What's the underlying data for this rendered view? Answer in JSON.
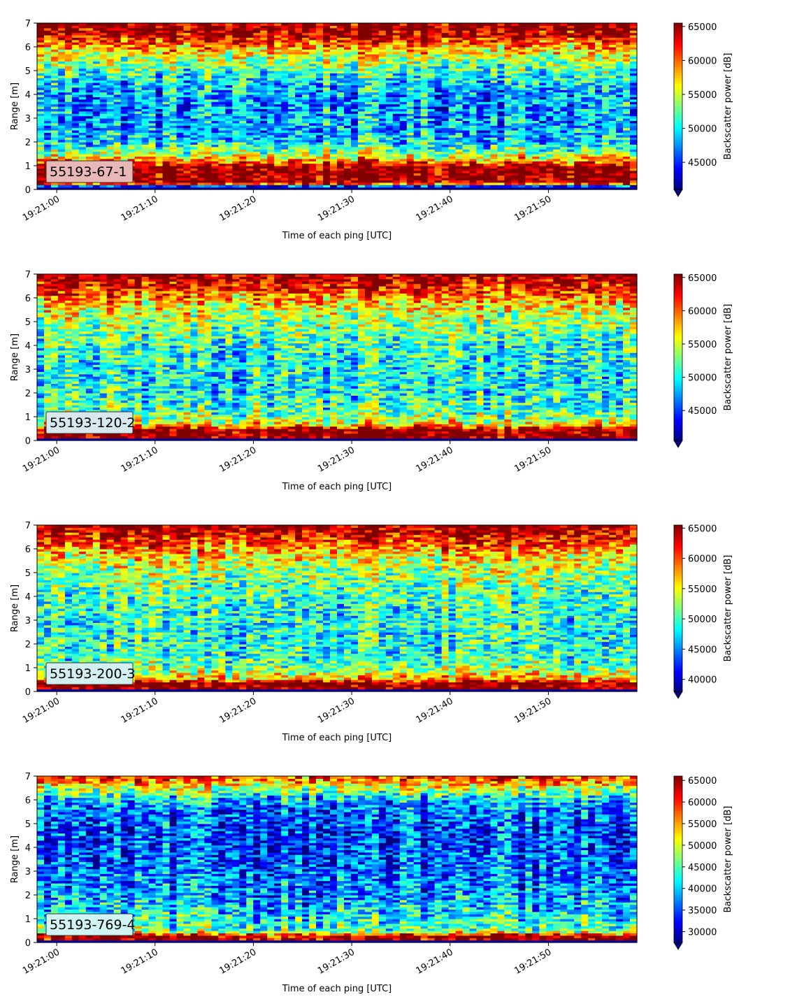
{
  "chart_data": [
    {
      "type": "heatmap",
      "label_box": "55193-67-1",
      "label_box_color": "#e8b7b7",
      "xlabel": "Time of each ping [UTC]",
      "ylabel": "Range [m]",
      "colorbar_label": "Backscatter power [dB]",
      "x_ticks": [
        "19:21:00",
        "19:21:10",
        "19:21:20",
        "19:21:30",
        "19:21:40",
        "19:21:50"
      ],
      "x_range_seconds": [
        -2,
        59
      ],
      "y_ticks": [
        0,
        1,
        2,
        3,
        4,
        5,
        6,
        7
      ],
      "ylim": [
        0,
        7
      ],
      "colorbar_ticks": [
        45000,
        50000,
        55000,
        60000,
        65000
      ],
      "clim": [
        41000,
        65500
      ],
      "colormap": "jet",
      "colorbar_extend": "min",
      "profile": [
        [
          0.0,
          0.05
        ],
        [
          0.12,
          0.0
        ],
        [
          0.28,
          1.0
        ],
        [
          0.95,
          1.0
        ],
        [
          1.15,
          0.8
        ],
        [
          1.5,
          0.55
        ],
        [
          2.0,
          0.35
        ],
        [
          2.5,
          0.3
        ],
        [
          3.0,
          0.3
        ],
        [
          3.5,
          0.28
        ],
        [
          4.0,
          0.28
        ],
        [
          4.5,
          0.35
        ],
        [
          5.0,
          0.45
        ],
        [
          5.5,
          0.55
        ],
        [
          6.0,
          0.72
        ],
        [
          6.5,
          0.95
        ],
        [
          7.0,
          1.0
        ]
      ]
    },
    {
      "type": "heatmap",
      "label_box": "55193-120-2",
      "label_box_color": "#d7e9ee",
      "xlabel": "Time of each ping [UTC]",
      "ylabel": "Range [m]",
      "colorbar_label": "Backscatter power [dB]",
      "x_ticks": [
        "19:21:00",
        "19:21:10",
        "19:21:20",
        "19:21:30",
        "19:21:40",
        "19:21:50"
      ],
      "x_range_seconds": [
        -2,
        59
      ],
      "y_ticks": [
        0,
        1,
        2,
        3,
        4,
        5,
        6,
        7
      ],
      "ylim": [
        0,
        7
      ],
      "colorbar_ticks": [
        45000,
        50000,
        55000,
        60000,
        65000
      ],
      "clim": [
        40500,
        65500
      ],
      "colormap": "jet",
      "colorbar_extend": "min",
      "profile": [
        [
          0.0,
          0.1
        ],
        [
          0.08,
          1.0
        ],
        [
          0.45,
          1.0
        ],
        [
          0.7,
          0.65
        ],
        [
          1.0,
          0.5
        ],
        [
          1.5,
          0.42
        ],
        [
          2.0,
          0.38
        ],
        [
          2.5,
          0.38
        ],
        [
          3.0,
          0.38
        ],
        [
          3.5,
          0.4
        ],
        [
          4.0,
          0.42
        ],
        [
          4.5,
          0.48
        ],
        [
          5.0,
          0.52
        ],
        [
          5.5,
          0.6
        ],
        [
          6.0,
          0.72
        ],
        [
          6.5,
          0.88
        ],
        [
          7.0,
          1.0
        ]
      ]
    },
    {
      "type": "heatmap",
      "label_box": "55193-200-3",
      "label_box_color": "#d2f0f0",
      "xlabel": "Time of each ping [UTC]",
      "ylabel": "Range [m]",
      "colorbar_label": "Backscatter power [dB]",
      "x_ticks": [
        "19:21:00",
        "19:21:10",
        "19:21:20",
        "19:21:30",
        "19:21:40",
        "19:21:50"
      ],
      "x_range_seconds": [
        -2,
        59
      ],
      "y_ticks": [
        0,
        1,
        2,
        3,
        4,
        5,
        6,
        7
      ],
      "ylim": [
        0,
        7
      ],
      "colorbar_ticks": [
        40000,
        45000,
        50000,
        55000,
        60000,
        65000
      ],
      "clim": [
        38000,
        65500
      ],
      "colormap": "jet",
      "colorbar_extend": "min",
      "profile": [
        [
          0.0,
          0.1
        ],
        [
          0.08,
          1.0
        ],
        [
          0.35,
          1.0
        ],
        [
          0.55,
          0.7
        ],
        [
          1.0,
          0.48
        ],
        [
          1.5,
          0.42
        ],
        [
          2.0,
          0.4
        ],
        [
          2.5,
          0.4
        ],
        [
          3.0,
          0.4
        ],
        [
          3.5,
          0.42
        ],
        [
          4.0,
          0.44
        ],
        [
          4.5,
          0.48
        ],
        [
          5.0,
          0.52
        ],
        [
          5.5,
          0.6
        ],
        [
          6.0,
          0.72
        ],
        [
          6.5,
          0.88
        ],
        [
          7.0,
          1.0
        ]
      ]
    },
    {
      "type": "heatmap",
      "label_box": "55193-769-4",
      "label_box_color": "#d0f3f3",
      "xlabel": "Time of each ping [UTC]",
      "ylabel": "Range [m]",
      "colorbar_label": "Backscatter power [dB]",
      "x_ticks": [
        "19:21:00",
        "19:21:10",
        "19:21:20",
        "19:21:30",
        "19:21:40",
        "19:21:50"
      ],
      "x_range_seconds": [
        -2,
        59
      ],
      "y_ticks": [
        0,
        1,
        2,
        3,
        4,
        5,
        6,
        7
      ],
      "ylim": [
        0,
        7
      ],
      "colorbar_ticks": [
        30000,
        35000,
        40000,
        45000,
        50000,
        55000,
        60000,
        65000
      ],
      "clim": [
        27500,
        66000
      ],
      "colormap": "jet",
      "colorbar_extend": "min",
      "profile": [
        [
          0.0,
          0.1
        ],
        [
          0.08,
          1.0
        ],
        [
          0.28,
          0.95
        ],
        [
          0.5,
          0.45
        ],
        [
          1.0,
          0.38
        ],
        [
          1.5,
          0.32
        ],
        [
          2.0,
          0.26
        ],
        [
          2.5,
          0.24
        ],
        [
          3.0,
          0.22
        ],
        [
          3.5,
          0.2
        ],
        [
          4.0,
          0.18
        ],
        [
          4.5,
          0.17
        ],
        [
          5.0,
          0.18
        ],
        [
          5.5,
          0.22
        ],
        [
          6.0,
          0.3
        ],
        [
          6.5,
          0.55
        ],
        [
          7.0,
          0.85
        ]
      ]
    }
  ]
}
